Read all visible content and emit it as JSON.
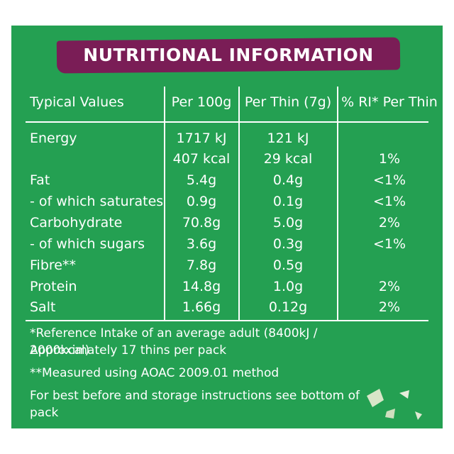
{
  "title": "NUTRITIONAL INFORMATION",
  "table": {
    "headers": [
      "Typical Values",
      "Per 100g",
      "Per Thin (7g)",
      "% RI* Per Thin"
    ],
    "rows": [
      [
        "Energy",
        "1717 kJ",
        "121 kJ",
        null
      ],
      [
        null,
        "407 kcal",
        "29 kcal",
        "1%"
      ],
      [
        "Fat",
        "5.4g",
        "0.4g",
        "<1%"
      ],
      [
        "- of which saturates",
        "0.9g",
        "0.1g",
        "<1%"
      ],
      [
        "Carbohydrate",
        "70.8g",
        "5.0g",
        "2%"
      ],
      [
        "- of which sugars",
        "3.6g",
        "0.3g",
        "<1%"
      ],
      [
        "Fibre**",
        "7.8g",
        "0.5g",
        null
      ],
      [
        "Protein",
        "14.8g",
        "1.0g",
        "2%"
      ],
      [
        "Salt",
        "1.66g",
        "0.12g",
        "2%"
      ]
    ]
  },
  "notes": [
    "*Reference Intake of an average adult (8400kJ / 2000kcal)",
    "Approximately 17 thins per pack",
    "**Measured using AOAC 2009.01 method",
    "For best before and storage instructions see bottom of pack"
  ]
}
